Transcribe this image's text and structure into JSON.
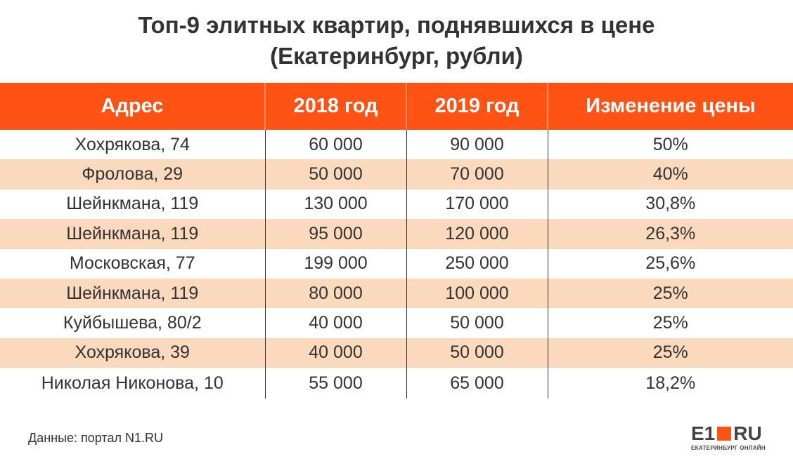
{
  "chart_data": {
    "type": "table",
    "title_line1": "Топ-9 элитных квартир, поднявшихся в цене",
    "title_line2": "(Екатеринбург, рубли)",
    "columns": [
      "Адрес",
      "2018 год",
      "2019 год",
      "Изменение цены"
    ],
    "rows": [
      [
        "Хохрякова, 74",
        "60 000",
        "90 000",
        "50%"
      ],
      [
        "Фролова, 29",
        "50 000",
        "70 000",
        "40%"
      ],
      [
        "Шейнкмана, 119",
        "130 000",
        "170 000",
        "30,8%"
      ],
      [
        "Шейнкмана, 119",
        "95 000",
        "120 000",
        "26,3%"
      ],
      [
        "Московская, 77",
        "199 000",
        "250 000",
        "25,6%"
      ],
      [
        "Шейнкмана, 119",
        "80 000",
        "100 000",
        "25%"
      ],
      [
        "Куйбышева, 80/2",
        "40 000",
        "50 000",
        "25%"
      ],
      [
        "Хохрякова, 39",
        "40 000",
        "50 000",
        "25%"
      ],
      [
        "Николая Никонова, 10",
        "55 000",
        "65 000",
        "18,2%"
      ]
    ],
    "header_color": "#ff5316",
    "stripe_color": "#fbd9bd"
  },
  "source": "Данные: портал N1.RU",
  "logo": {
    "left": "E1",
    "right": "RU",
    "tagline": "ЕКАТЕРИНБУРГ ОНЛАЙН",
    "accent": "#ff5316"
  }
}
